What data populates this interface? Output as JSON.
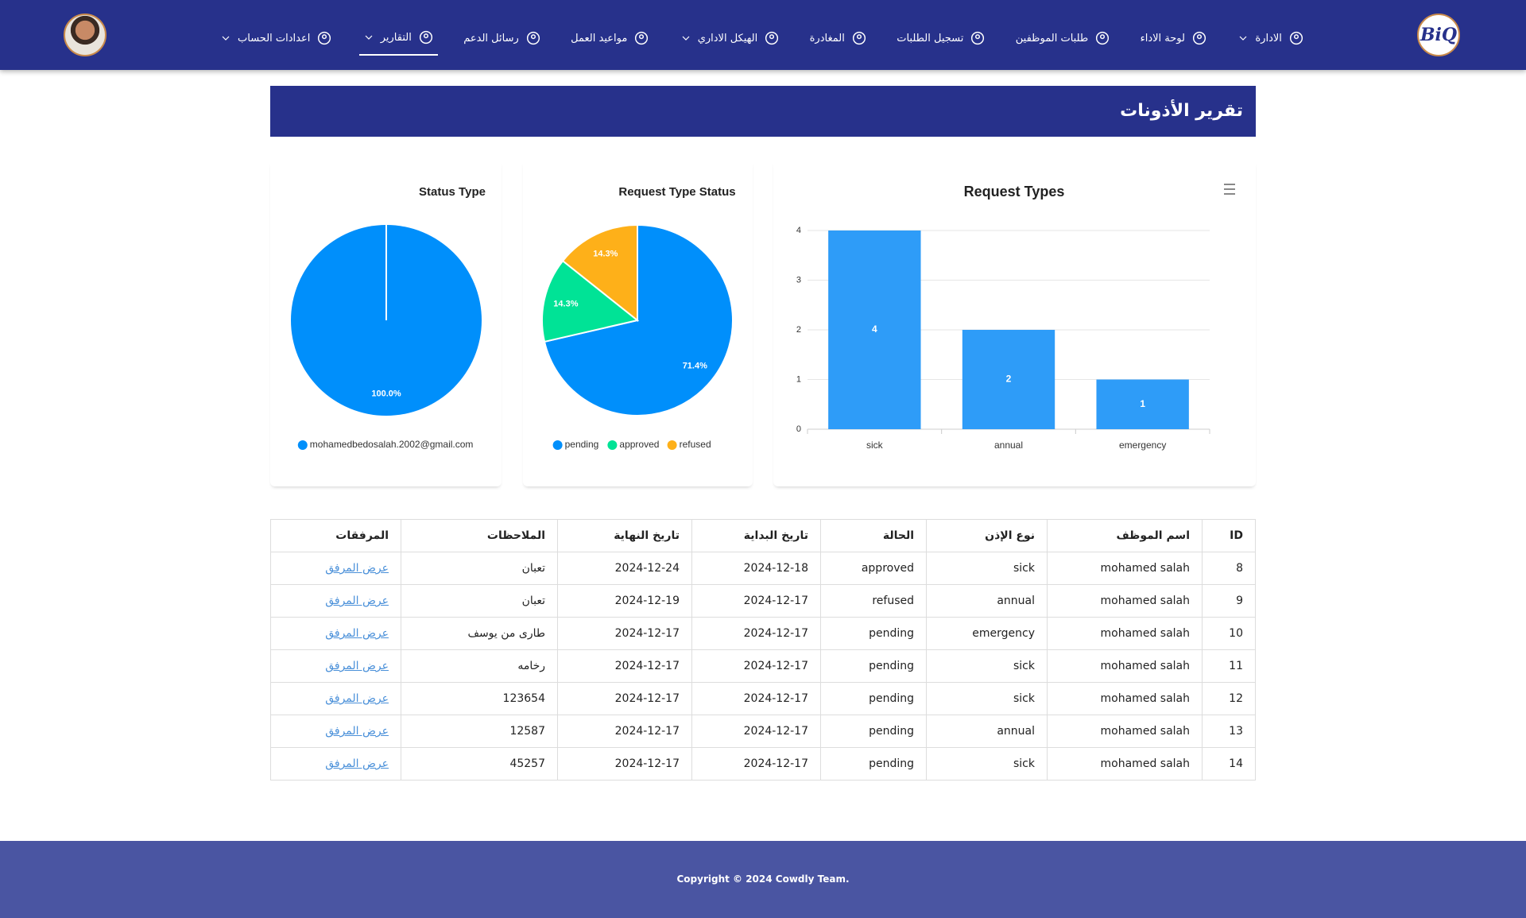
{
  "nav": {
    "logo": "BiQ",
    "items": [
      {
        "label": "الادارة"
      },
      {
        "label": "لوحة الاداء"
      },
      {
        "label": "طلبات الموظفين"
      },
      {
        "label": "تسجيل الطلبات"
      },
      {
        "label": "المغادرة"
      },
      {
        "label": "الهيكل الاداري"
      },
      {
        "label": "مواعيد العمل"
      },
      {
        "label": "رسائل الدعم"
      },
      {
        "label": "التقارير"
      },
      {
        "label": "اعدادات الحساب"
      }
    ]
  },
  "header": {
    "title": "تقرير الأذونات"
  },
  "chart_data": [
    {
      "type": "pie",
      "title": "Status Type",
      "labels": [
        "mohamedbedosalah.2002@gmail.com"
      ],
      "values": [
        100
      ],
      "value_labels": [
        "100.0%"
      ],
      "colors": [
        "#008ffb"
      ]
    },
    {
      "type": "pie",
      "title": "Request Type Status",
      "labels": [
        "pending",
        "approved",
        "refused"
      ],
      "values": [
        71.4,
        14.3,
        14.3
      ],
      "value_labels": [
        "71.4%",
        "14.3%",
        "14.3%"
      ],
      "colors": [
        "#008ffb",
        "#00e396",
        "#feb019"
      ]
    },
    {
      "type": "bar",
      "title": "Request Types",
      "categories": [
        "sick",
        "annual",
        "emergency"
      ],
      "values": [
        4,
        2,
        1
      ],
      "color": "#2e9cf8",
      "ylim": [
        0,
        4
      ],
      "yticks": [
        0,
        1,
        2,
        3,
        4
      ],
      "grid": true
    }
  ],
  "table": {
    "headers": [
      "ID",
      "اسم الموظف",
      "نوع الإذن",
      "الحالة",
      "تاريخ البداية",
      "تاريخ النهاية",
      "الملاحظات",
      "المرفقات"
    ],
    "rows": [
      [
        8,
        "mohamed salah",
        "sick",
        "approved",
        "2024-12-18",
        "2024-12-24",
        "تعبان",
        "عرض المرفق"
      ],
      [
        9,
        "mohamed salah",
        "annual",
        "refused",
        "2024-12-17",
        "2024-12-19",
        "تعبان",
        "عرض المرفق"
      ],
      [
        10,
        "mohamed salah",
        "emergency",
        "pending",
        "2024-12-17",
        "2024-12-17",
        "طارى من يوسف",
        "عرض المرفق"
      ],
      [
        11,
        "mohamed salah",
        "sick",
        "pending",
        "2024-12-17",
        "2024-12-17",
        "رخامه",
        "عرض المرفق"
      ],
      [
        12,
        "mohamed salah",
        "sick",
        "pending",
        "2024-12-17",
        "2024-12-17",
        "123654",
        "عرض المرفق"
      ],
      [
        13,
        "mohamed salah",
        "annual",
        "pending",
        "2024-12-17",
        "2024-12-17",
        "12587",
        "عرض المرفق"
      ],
      [
        14,
        "mohamed salah",
        "sick",
        "pending",
        "2024-12-17",
        "2024-12-17",
        "45257",
        "عرض المرفق"
      ]
    ]
  },
  "footer": {
    "copyright": "Copyright © 2024 Cowdly Team."
  }
}
